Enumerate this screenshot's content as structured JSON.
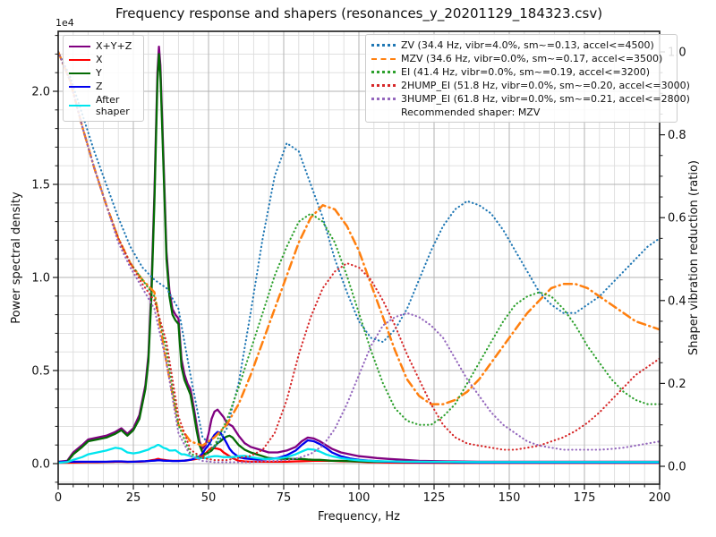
{
  "title": "Frequency response and shapers (resonances_y_20201129_184323.csv)",
  "offset_text": "1e4",
  "chart_data": {
    "type": "line",
    "xlabel": "Frequency, Hz",
    "ylabel_left": "Power spectral density",
    "ylabel_right": "Shaper vibration reduction (ratio)",
    "xlim": [
      0,
      200
    ],
    "ylim_left_1e4": [
      -0.11,
      2.32
    ],
    "ylim_right": [
      -0.043,
      1.05
    ],
    "x_tick_values": [
      0,
      25,
      50,
      75,
      100,
      125,
      150,
      175,
      200
    ],
    "x_tick_labels": [
      "0",
      "25",
      "50",
      "75",
      "100",
      "125",
      "150",
      "175",
      "200"
    ],
    "x_minor_step": 5,
    "y_left_tick_values": [
      0.0,
      0.5,
      1.0,
      1.5,
      2.0
    ],
    "y_left_tick_labels": [
      "0.0",
      "0.5",
      "1.0",
      "1.5",
      "2.0"
    ],
    "y_left_minor_step": 0.1,
    "y_right_tick_values": [
      0.0,
      0.2,
      0.4,
      0.6,
      0.8,
      1.0
    ],
    "y_right_tick_labels": [
      "0.0",
      "0.2",
      "0.4",
      "0.6",
      "0.8",
      "1.0"
    ],
    "y_right_minor_step": 0.05,
    "grid": "both",
    "legend_left_title": null,
    "x_psd": [
      0,
      3,
      5,
      8,
      10,
      13,
      16,
      19,
      21,
      23,
      25,
      27,
      29,
      30,
      31,
      32,
      33,
      33.5,
      34,
      35,
      36,
      37,
      38,
      39,
      40,
      41,
      42,
      43,
      44,
      45,
      46,
      47,
      48,
      49,
      50,
      51,
      52,
      53,
      54,
      55,
      56,
      57,
      58,
      60,
      62,
      64,
      66,
      68,
      70,
      73,
      76,
      79,
      81,
      83,
      85,
      87,
      89,
      91,
      94,
      97,
      100,
      103,
      106,
      110,
      115,
      120,
      130,
      140,
      160,
      180,
      200
    ],
    "psd_series": [
      {
        "name": "X+Y+Z",
        "color": "#800080",
        "y": [
          0.01,
          0.015,
          0.06,
          0.1,
          0.13,
          0.14,
          0.15,
          0.17,
          0.19,
          0.16,
          0.19,
          0.26,
          0.42,
          0.58,
          0.95,
          1.45,
          2.1,
          2.24,
          2.14,
          1.65,
          1.14,
          0.93,
          0.83,
          0.8,
          0.78,
          0.56,
          0.48,
          0.43,
          0.4,
          0.31,
          0.21,
          0.12,
          0.08,
          0.1,
          0.16,
          0.24,
          0.28,
          0.29,
          0.27,
          0.25,
          0.22,
          0.21,
          0.2,
          0.15,
          0.11,
          0.09,
          0.08,
          0.07,
          0.06,
          0.06,
          0.07,
          0.09,
          0.12,
          0.14,
          0.135,
          0.12,
          0.1,
          0.08,
          0.06,
          0.05,
          0.04,
          0.035,
          0.03,
          0.025,
          0.02,
          0.015,
          0.012,
          0.01,
          0.01,
          0.01,
          0.01
        ]
      },
      {
        "name": "X",
        "color": "#ff0000",
        "y": [
          0.005,
          0.005,
          0.006,
          0.007,
          0.008,
          0.008,
          0.009,
          0.01,
          0.01,
          0.009,
          0.01,
          0.01,
          0.012,
          0.015,
          0.018,
          0.02,
          0.025,
          0.025,
          0.022,
          0.02,
          0.018,
          0.016,
          0.015,
          0.015,
          0.015,
          0.015,
          0.016,
          0.018,
          0.02,
          0.022,
          0.025,
          0.03,
          0.04,
          0.055,
          0.07,
          0.085,
          0.082,
          0.08,
          0.075,
          0.06,
          0.05,
          0.04,
          0.03,
          0.015,
          0.012,
          0.01,
          0.01,
          0.01,
          0.01,
          0.01,
          0.01,
          0.012,
          0.013,
          0.014,
          0.015,
          0.015,
          0.015,
          0.015,
          0.013,
          0.012,
          0.01,
          0.008,
          0.007,
          0.006,
          0.005,
          0.005,
          0.004,
          0.004,
          0.004,
          0.004,
          0.004
        ]
      },
      {
        "name": "Y",
        "color": "#046b04",
        "y": [
          0.005,
          0.01,
          0.05,
          0.09,
          0.12,
          0.13,
          0.14,
          0.16,
          0.18,
          0.15,
          0.18,
          0.24,
          0.4,
          0.55,
          0.9,
          1.4,
          2.05,
          2.2,
          2.1,
          1.6,
          1.1,
          0.9,
          0.8,
          0.77,
          0.75,
          0.52,
          0.45,
          0.41,
          0.37,
          0.28,
          0.18,
          0.1,
          0.06,
          0.05,
          0.06,
          0.07,
          0.09,
          0.11,
          0.12,
          0.135,
          0.145,
          0.15,
          0.14,
          0.1,
          0.075,
          0.06,
          0.05,
          0.04,
          0.03,
          0.027,
          0.025,
          0.025,
          0.025,
          0.022,
          0.02,
          0.02,
          0.018,
          0.015,
          0.015,
          0.013,
          0.012,
          0.011,
          0.01,
          0.01,
          0.009,
          0.008,
          0.007,
          0.006,
          0.006,
          0.006,
          0.006
        ]
      },
      {
        "name": "Z",
        "color": "#0000ee",
        "y": [
          0.008,
          0.01,
          0.01,
          0.01,
          0.01,
          0.01,
          0.01,
          0.012,
          0.012,
          0.01,
          0.01,
          0.012,
          0.013,
          0.014,
          0.015,
          0.016,
          0.018,
          0.018,
          0.018,
          0.016,
          0.015,
          0.015,
          0.014,
          0.014,
          0.014,
          0.015,
          0.016,
          0.018,
          0.02,
          0.025,
          0.03,
          0.04,
          0.055,
          0.08,
          0.1,
          0.13,
          0.155,
          0.17,
          0.165,
          0.14,
          0.11,
          0.08,
          0.06,
          0.035,
          0.028,
          0.025,
          0.022,
          0.022,
          0.025,
          0.03,
          0.045,
          0.07,
          0.1,
          0.125,
          0.12,
          0.105,
          0.085,
          0.06,
          0.04,
          0.028,
          0.02,
          0.016,
          0.013,
          0.01,
          0.009,
          0.008,
          0.007,
          0.006,
          0.006,
          0.006,
          0.006
        ]
      },
      {
        "name": "After shaper",
        "color": "#00e5ee",
        "y": [
          0.005,
          0.008,
          0.02,
          0.035,
          0.05,
          0.06,
          0.07,
          0.085,
          0.08,
          0.06,
          0.055,
          0.06,
          0.07,
          0.075,
          0.085,
          0.09,
          0.1,
          0.1,
          0.095,
          0.085,
          0.08,
          0.07,
          0.07,
          0.072,
          0.06,
          0.05,
          0.05,
          0.045,
          0.04,
          0.035,
          0.03,
          0.03,
          0.03,
          0.03,
          0.035,
          0.038,
          0.04,
          0.04,
          0.038,
          0.035,
          0.035,
          0.035,
          0.035,
          0.04,
          0.042,
          0.035,
          0.03,
          0.025,
          0.025,
          0.028,
          0.035,
          0.05,
          0.065,
          0.078,
          0.075,
          0.065,
          0.05,
          0.04,
          0.03,
          0.022,
          0.018,
          0.015,
          0.013,
          0.012,
          0.01,
          0.01,
          0.009,
          0.008,
          0.008,
          0.008,
          0.008
        ]
      }
    ],
    "shaper_x": [
      0,
      4,
      8,
      12,
      16,
      20,
      24,
      28,
      32,
      36,
      40,
      44,
      48,
      52,
      56,
      60,
      64,
      68,
      72,
      76,
      80,
      84,
      88,
      92,
      96,
      100,
      104,
      108,
      112,
      116,
      120,
      124,
      128,
      132,
      136,
      140,
      144,
      148,
      152,
      156,
      160,
      164,
      168,
      172,
      176,
      180,
      184,
      188,
      192,
      196,
      200
    ],
    "shaper_series": [
      {
        "name": "ZV",
        "color": "#1f77b4",
        "style": "dotted",
        "label": "ZV (34.4 Hz, vibr=4.0%, sm~=0.13, accel<=4500)",
        "r": [
          1.0,
          0.94,
          0.85,
          0.76,
          0.68,
          0.6,
          0.53,
          0.48,
          0.45,
          0.43,
          0.38,
          0.22,
          0.07,
          0.045,
          0.09,
          0.2,
          0.37,
          0.55,
          0.7,
          0.78,
          0.76,
          0.68,
          0.6,
          0.5,
          0.42,
          0.35,
          0.31,
          0.3,
          0.33,
          0.38,
          0.45,
          0.52,
          0.58,
          0.62,
          0.64,
          0.63,
          0.61,
          0.57,
          0.52,
          0.47,
          0.42,
          0.39,
          0.37,
          0.37,
          0.39,
          0.41,
          0.44,
          0.47,
          0.5,
          0.53,
          0.55
        ]
      },
      {
        "name": "MZV",
        "color": "#ff7f0e",
        "style": "dashdot",
        "label": "MZV (34.6 Hz, vibr=0.0%, sm~=0.17, accel<=3500)",
        "r": [
          1.0,
          0.93,
          0.82,
          0.72,
          0.63,
          0.55,
          0.49,
          0.45,
          0.42,
          0.25,
          0.1,
          0.06,
          0.05,
          0.07,
          0.1,
          0.15,
          0.22,
          0.3,
          0.38,
          0.46,
          0.54,
          0.6,
          0.63,
          0.62,
          0.58,
          0.52,
          0.44,
          0.36,
          0.28,
          0.21,
          0.17,
          0.15,
          0.15,
          0.16,
          0.18,
          0.21,
          0.25,
          0.29,
          0.33,
          0.37,
          0.4,
          0.43,
          0.44,
          0.44,
          0.43,
          0.41,
          0.39,
          0.37,
          0.35,
          0.34,
          0.33
        ]
      },
      {
        "name": "EI",
        "color": "#2ca02c",
        "style": "dotted",
        "label": "EI (41.4 Hz, vibr=0.0%, sm~=0.19, accel<=3200)",
        "r": [
          1.0,
          0.93,
          0.82,
          0.72,
          0.63,
          0.55,
          0.49,
          0.45,
          0.41,
          0.28,
          0.1,
          0.03,
          0.02,
          0.05,
          0.11,
          0.19,
          0.28,
          0.37,
          0.46,
          0.53,
          0.59,
          0.61,
          0.59,
          0.54,
          0.46,
          0.37,
          0.28,
          0.2,
          0.14,
          0.11,
          0.1,
          0.1,
          0.12,
          0.15,
          0.2,
          0.25,
          0.3,
          0.35,
          0.39,
          0.41,
          0.42,
          0.41,
          0.38,
          0.34,
          0.29,
          0.25,
          0.21,
          0.18,
          0.16,
          0.15,
          0.15
        ]
      },
      {
        "name": "2HUMP_EI",
        "color": "#d62728",
        "style": "dotted",
        "label": "2HUMP_EI (51.8 Hz, vibr=0.0%, sm~=0.20, accel<=3000)",
        "r": [
          1.0,
          0.93,
          0.82,
          0.72,
          0.63,
          0.55,
          0.49,
          0.44,
          0.4,
          0.3,
          0.12,
          0.04,
          0.02,
          0.015,
          0.015,
          0.02,
          0.025,
          0.04,
          0.08,
          0.16,
          0.27,
          0.36,
          0.43,
          0.47,
          0.49,
          0.48,
          0.45,
          0.4,
          0.34,
          0.27,
          0.21,
          0.15,
          0.1,
          0.07,
          0.055,
          0.05,
          0.045,
          0.04,
          0.04,
          0.045,
          0.05,
          0.06,
          0.07,
          0.085,
          0.105,
          0.13,
          0.16,
          0.19,
          0.22,
          0.24,
          0.26
        ]
      },
      {
        "name": "3HUMP_EI",
        "color": "#9467bd",
        "style": "dotted",
        "label": "3HUMP_EI (61.8 Hz, vibr=0.0%, sm~=0.21, accel<=2800)",
        "r": [
          1.0,
          0.93,
          0.82,
          0.72,
          0.63,
          0.54,
          0.48,
          0.43,
          0.38,
          0.25,
          0.08,
          0.025,
          0.013,
          0.01,
          0.01,
          0.01,
          0.01,
          0.012,
          0.013,
          0.015,
          0.02,
          0.03,
          0.05,
          0.09,
          0.15,
          0.22,
          0.29,
          0.34,
          0.36,
          0.37,
          0.36,
          0.34,
          0.31,
          0.26,
          0.21,
          0.17,
          0.13,
          0.1,
          0.08,
          0.06,
          0.05,
          0.045,
          0.04,
          0.04,
          0.04,
          0.04,
          0.042,
          0.045,
          0.05,
          0.055,
          0.06
        ]
      }
    ],
    "recommended": "Recommended shaper: MZV"
  }
}
